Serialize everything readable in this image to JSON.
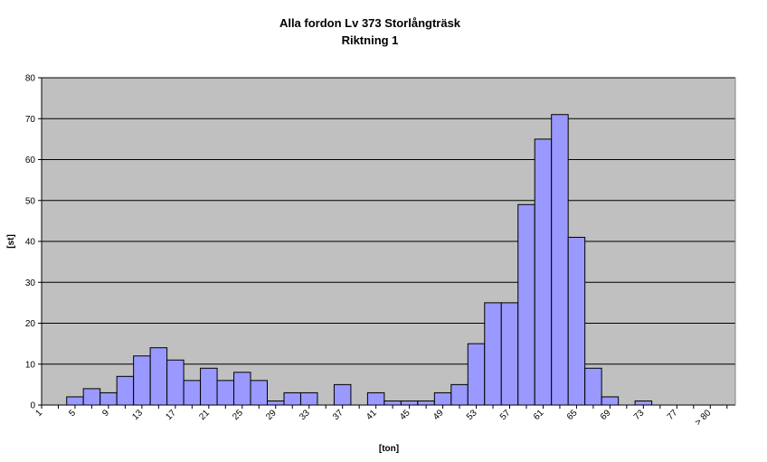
{
  "chart_data": {
    "type": "bar",
    "title": "Alla fordon Lv 373 Storlångträsk",
    "subtitle": "Riktning 1",
    "xlabel": "[ton]",
    "ylabel": "[st]",
    "ylim": [
      0,
      80
    ],
    "yticks": [
      "0",
      "10",
      "20",
      "30",
      "40",
      "50",
      "60",
      "70",
      "80"
    ],
    "grid": true,
    "legend": "none",
    "categories": [
      "1",
      "3",
      "5",
      "7",
      "9",
      "11",
      "13",
      "15",
      "17",
      "19",
      "21",
      "23",
      "25",
      "27",
      "29",
      "31",
      "33",
      "35",
      "37",
      "39",
      "41",
      "43",
      "45",
      "47",
      "49",
      "51",
      "53",
      "55",
      "57",
      "59",
      "61",
      "63",
      "65",
      "67",
      "69",
      "71",
      "73",
      "75",
      "77",
      "79",
      "> 80"
    ],
    "visible_tick_labels": [
      "1",
      "5",
      "9",
      "13",
      "17",
      "21",
      "25",
      "29",
      "33",
      "37",
      "41",
      "45",
      "49",
      "53",
      "57",
      "61",
      "65",
      "69",
      "73",
      "77",
      "> 80"
    ],
    "values": [
      0,
      2,
      4,
      3,
      7,
      12,
      14,
      11,
      6,
      9,
      6,
      8,
      6,
      1,
      3,
      3,
      0,
      5,
      0,
      3,
      1,
      1,
      1,
      3,
      5,
      15,
      25,
      25,
      49,
      65,
      71,
      41,
      9,
      2,
      0,
      1,
      0,
      0,
      0,
      0,
      0
    ],
    "colors": {
      "plot_bg": "#c0c0c0",
      "bar_fill": "#9999ff",
      "bar_stroke": "#000000",
      "grid": "#000000"
    }
  }
}
